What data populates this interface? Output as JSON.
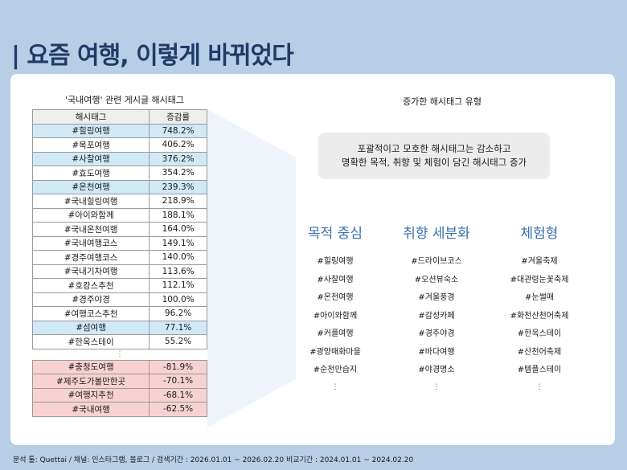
{
  "title": "| 요즘 여행, 이렇게 바뀌었다",
  "left": {
    "heading": "'국내여행' 관련 게시글 해시태그",
    "columns": [
      "해시태그",
      "증감률"
    ],
    "increase_rows": [
      {
        "tag": "#힐링여행",
        "rate": "748.2%",
        "highlight": true
      },
      {
        "tag": "#목포여행",
        "rate": "406.2%",
        "highlight": false
      },
      {
        "tag": "#사찰여행",
        "rate": "376.2%",
        "highlight": true
      },
      {
        "tag": "#효도여행",
        "rate": "354.2%",
        "highlight": false
      },
      {
        "tag": "#온천여행",
        "rate": "239.3%",
        "highlight": true
      },
      {
        "tag": "#국내힐링여행",
        "rate": "218.9%",
        "highlight": false
      },
      {
        "tag": "#아이와함께",
        "rate": "188.1%",
        "highlight": false
      },
      {
        "tag": "#국내온천여행",
        "rate": "164.0%",
        "highlight": false
      },
      {
        "tag": "#국내여행코스",
        "rate": "149.1%",
        "highlight": false
      },
      {
        "tag": "#경주여행코스",
        "rate": "140.0%",
        "highlight": false
      },
      {
        "tag": "#국내기차여행",
        "rate": "113.6%",
        "highlight": false
      },
      {
        "tag": "#호캉스추천",
        "rate": "112.1%",
        "highlight": false
      },
      {
        "tag": "#경주야경",
        "rate": "100.0%",
        "highlight": false
      },
      {
        "tag": "#여행코스추천",
        "rate": "96.2%",
        "highlight": false
      },
      {
        "tag": "#섬여행",
        "rate": "77.1%",
        "highlight": true
      },
      {
        "tag": "#한옥스테이",
        "rate": "55.2%",
        "highlight": false
      }
    ],
    "gap": "⋮",
    "decrease_rows": [
      {
        "tag": "#충청도여행",
        "rate": "-81.9%"
      },
      {
        "tag": "#제주도가볼만한곳",
        "rate": "-70.1%"
      },
      {
        "tag": "#여행지추천",
        "rate": "-68.1%"
      },
      {
        "tag": "#국내여행",
        "rate": "-62.5%"
      }
    ]
  },
  "right": {
    "heading": "증가한 해시태그 유형",
    "note_line1": "포괄적이고 모호한 해시태그는 감소하고",
    "note_line2": "명확한 목적, 취향 및 체험이 담긴 해시태그 증가",
    "columns": [
      {
        "title": "목적 중심",
        "items": [
          "#힐링여행",
          "#사찰여행",
          "#온천여행",
          "#아이와함께",
          "#커플여행",
          "#광양매화마을",
          "#순천만습지"
        ],
        "more": "⋮"
      },
      {
        "title": "취향 세분화",
        "items": [
          "#드라이브코스",
          "#오션뷰숙소",
          "#겨울풍경",
          "#감성카페",
          "#경주야경",
          "#바다여행",
          "#야경명소"
        ],
        "more": "⋮"
      },
      {
        "title": "체험형",
        "items": [
          "#겨울축제",
          "#대관령눈꽃축제",
          "#눈썰매",
          "#화천산천어축제",
          "#한옥스테이",
          "#산천어축제",
          "#템플스테이"
        ],
        "more": "⋮"
      }
    ]
  },
  "footer": "분석 툴: Quettai / 채널: 인스타그램, 블로그 / 검색기간 : 2026.01.01 ~ 2026.02.20 비교기간 : 2024.01.01 ~ 2024.02.20",
  "colors": {
    "background": "#b7cfe6",
    "title": "#1f3b66",
    "highlight_blue": "#cfe9f7",
    "highlight_pink": "#f8d2d2",
    "category_title": "#3a6fb0"
  }
}
